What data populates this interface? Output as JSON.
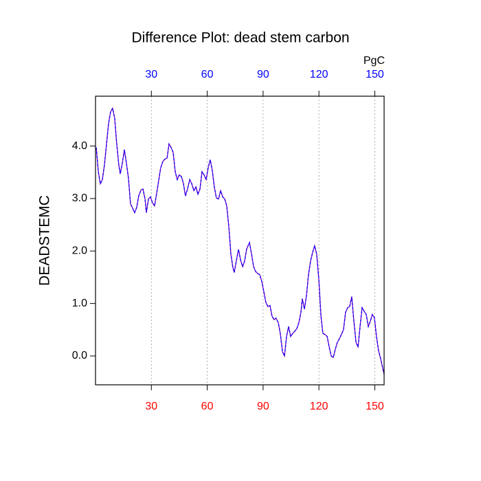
{
  "chart_data": {
    "type": "line",
    "title": "Difference Plot: dead stem carbon",
    "ylabel": "DEADSTEMC",
    "x2label": "PgC",
    "xlim": [
      0,
      155
    ],
    "ylim": [
      -0.55,
      4.95
    ],
    "xticks": [
      30,
      60,
      90,
      120,
      150
    ],
    "yticks": [
      {
        "value": 0,
        "label": "0.0"
      },
      {
        "value": 1,
        "label": "1.0"
      },
      {
        "value": 2,
        "label": "2.0"
      },
      {
        "value": 3,
        "label": "3.0"
      },
      {
        "value": 4,
        "label": "4.0"
      }
    ],
    "x_grid": true,
    "bottom_tick_color": "#ff0000",
    "top_tick_color": "#0000ff",
    "series": [
      {
        "color": "#8000c0",
        "dash_color": "#0000ff",
        "x": [
          0.4,
          1.5,
          2.6,
          3.7,
          4.8,
          5.9,
          7,
          8.1,
          9.2,
          10.3,
          11.4,
          12.5,
          13.3,
          14.4,
          15.5,
          16.6,
          17.7,
          18.8,
          19.9,
          21,
          22.1,
          23.2,
          24.4,
          25.5,
          26.6,
          27.3,
          28.4,
          29.5,
          30.6,
          31.7,
          32.8,
          33.9,
          35,
          36.2,
          37.3,
          38.4,
          39.5,
          40.6,
          41.7,
          42.8,
          43.9,
          45,
          46.1,
          47.2,
          48.3,
          49.4,
          50.6,
          51.7,
          52.8,
          53.9,
          55,
          56.1,
          57.2,
          58.3,
          59.4,
          60.5,
          61.6,
          62.7,
          63.8,
          64.9,
          66.1,
          67.2,
          68.3,
          69.4,
          70.5,
          71.6,
          72.7,
          73.8,
          74.5,
          75.6,
          76.8,
          77.9,
          79,
          80.1,
          81.2,
          82.7,
          83.8,
          84.9,
          86,
          87.1,
          88.2,
          89.3,
          90.4,
          91.5,
          92.6,
          93.7,
          94.8,
          95.9,
          97,
          98.2,
          99.3,
          100.4,
          101.5,
          102.6,
          103.7,
          104.8,
          105.9,
          107,
          108.1,
          109.2,
          110.3,
          111.1,
          112.2,
          113.3,
          114.4,
          115.5,
          116.6,
          117.7,
          118.8,
          120,
          121.1,
          122.1,
          123.2,
          124.4,
          125.5,
          126.6,
          127.7,
          128.8,
          129.9,
          131,
          132.1,
          133.2,
          134.3,
          135.4,
          136.5,
          137.6,
          138.7,
          139.9,
          141,
          142.1,
          143.2,
          144.3,
          145.4,
          146.5,
          147.6,
          148.7,
          149.8,
          150.9,
          152,
          153.1,
          154.2,
          155
        ],
        "values": [
          3.97,
          3.51,
          3.28,
          3.36,
          3.64,
          4.04,
          4.43,
          4.65,
          4.72,
          4.53,
          4.04,
          3.64,
          3.47,
          3.67,
          3.93,
          3.67,
          3.38,
          2.9,
          2.82,
          2.73,
          2.83,
          3.05,
          3.16,
          3.18,
          2.99,
          2.73,
          2.99,
          3.03,
          2.92,
          2.86,
          3.09,
          3.34,
          3.58,
          3.71,
          3.75,
          3.77,
          4.04,
          3.97,
          3.88,
          3.51,
          3.36,
          3.45,
          3.42,
          3.29,
          3.05,
          3.18,
          3.36,
          3.28,
          3.15,
          3.22,
          3.08,
          3.18,
          3.51,
          3.45,
          3.36,
          3.58,
          3.74,
          3.54,
          3.22,
          3.01,
          2.99,
          3.15,
          3.03,
          2.99,
          2.86,
          2.46,
          1.94,
          1.68,
          1.59,
          1.81,
          2.03,
          1.83,
          1.7,
          1.81,
          2.04,
          2.16,
          1.94,
          1.7,
          1.61,
          1.57,
          1.55,
          1.42,
          1.22,
          1.02,
          0.94,
          0.96,
          0.76,
          0.69,
          0.72,
          0.63,
          0.41,
          0.08,
          0.0,
          0.37,
          0.56,
          0.37,
          0.43,
          0.47,
          0.52,
          0.63,
          0.83,
          1.09,
          0.89,
          1.15,
          1.55,
          1.81,
          1.97,
          2.1,
          1.94,
          1.42,
          0.76,
          0.43,
          0.41,
          0.37,
          0.17,
          0.0,
          -0.03,
          0.13,
          0.26,
          0.33,
          0.41,
          0.5,
          0.83,
          0.92,
          0.94,
          1.13,
          0.69,
          0.26,
          0.17,
          0.56,
          0.92,
          0.85,
          0.79,
          0.56,
          0.66,
          0.79,
          0.73,
          0.37,
          0.1,
          -0.05,
          -0.22,
          -0.35
        ]
      }
    ]
  }
}
